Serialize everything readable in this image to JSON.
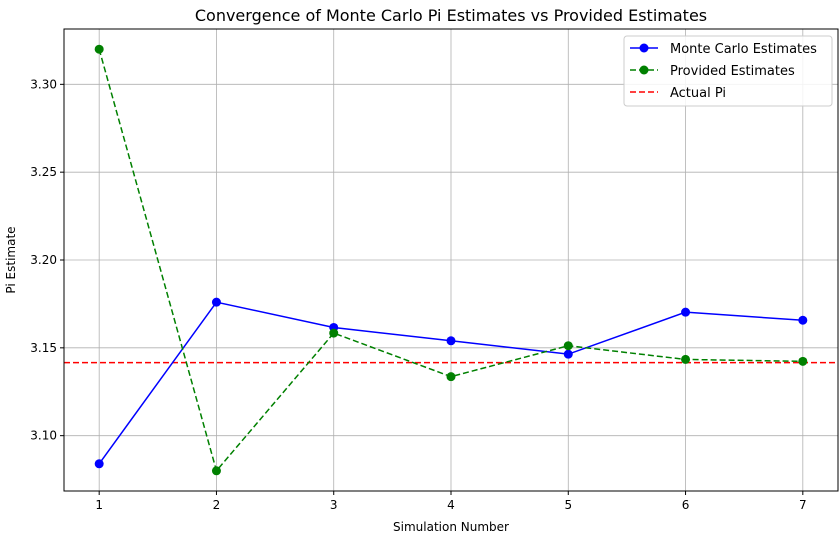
{
  "chart_data": {
    "type": "line",
    "title": "Convergence of Monte Carlo Pi Estimates vs Provided Estimates",
    "xlabel": "Simulation Number",
    "ylabel": "Pi Estimate",
    "x": [
      1,
      2,
      3,
      4,
      5,
      6,
      7
    ],
    "xticks": [
      "1",
      "2",
      "3",
      "4",
      "5",
      "6",
      "7"
    ],
    "xlim": [
      0.7,
      7.3
    ],
    "yticks": [
      "3.10",
      "3.15",
      "3.20",
      "3.25",
      "3.30"
    ],
    "ytick_values": [
      3.1,
      3.15,
      3.2,
      3.25,
      3.3
    ],
    "ylim": [
      3.0685,
      3.3315
    ],
    "grid": true,
    "legend_position": "top-right",
    "series": [
      {
        "name": "Monte Carlo Estimates",
        "values": [
          3.084,
          3.176,
          3.1616,
          3.154,
          3.1464,
          3.1703,
          3.1657
        ],
        "color": "#0000ff",
        "line_style": "solid",
        "marker": "circle"
      },
      {
        "name": "Provided Estimates",
        "values": [
          3.32,
          3.08,
          3.1584,
          3.1336,
          3.1512,
          3.1434,
          3.1423
        ],
        "color": "#008000",
        "line_style": "dashed",
        "marker": "circle"
      }
    ],
    "reference_lines": [
      {
        "name": "Actual Pi",
        "value": 3.14159,
        "color": "#ff0000",
        "line_style": "dashed"
      }
    ]
  }
}
